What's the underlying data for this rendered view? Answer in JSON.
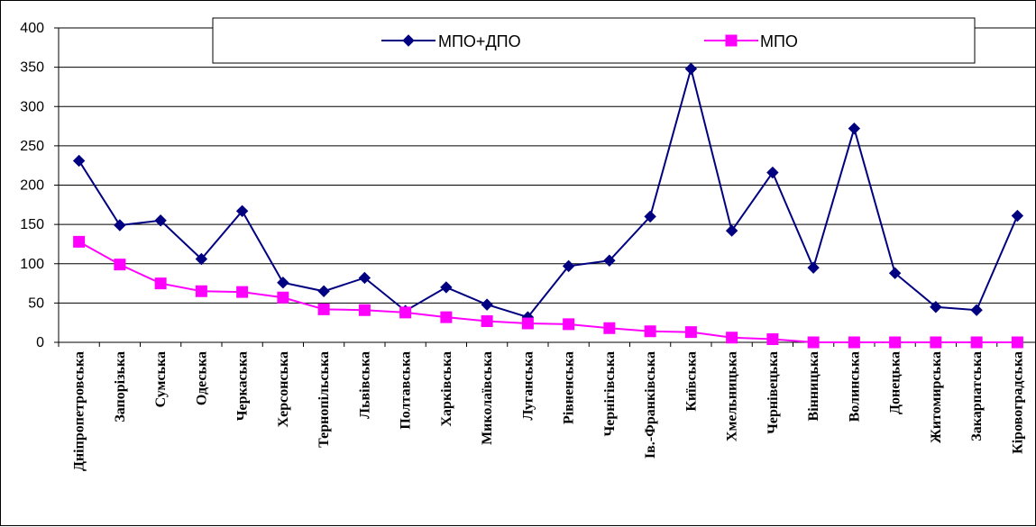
{
  "chart_data": {
    "type": "line",
    "title": "",
    "xlabel": "",
    "ylabel": "",
    "ylim": [
      0,
      400
    ],
    "yticks": [
      0,
      50,
      100,
      150,
      200,
      250,
      300,
      350,
      400
    ],
    "grid": "horizontal",
    "legend_position": "top-right",
    "categories": [
      "Дніпропетровська",
      "Запорізька",
      "Сумська",
      "Одеська",
      "Черкаська",
      "Херсонська",
      "Тернопільська",
      "Львівська",
      "Полтавська",
      "Харківська",
      "Миколаївська",
      "Луганська",
      "Рівненська",
      "Чернігівська",
      "Ів.-Франківська",
      "Київська",
      "Хмельницька",
      "Чернівецька",
      "Вінницька",
      "Волинська",
      "Донецька",
      "Житомирська",
      "Закарпатська",
      "Кіровоградська"
    ],
    "series": [
      {
        "name": "МПО+ДПО",
        "color": "#000080",
        "marker": "diamond",
        "values": [
          231,
          149,
          155,
          106,
          167,
          76,
          65,
          82,
          40,
          70,
          48,
          32,
          97,
          104,
          160,
          348,
          142,
          216,
          95,
          272,
          88,
          45,
          41,
          161
        ]
      },
      {
        "name": "МПО",
        "color": "#ff00ff",
        "marker": "square",
        "values": [
          128,
          99,
          75,
          65,
          64,
          57,
          42,
          41,
          38,
          32,
          27,
          24,
          23,
          18,
          14,
          13,
          6,
          4,
          0,
          0,
          0,
          0,
          0,
          0
        ]
      }
    ]
  }
}
